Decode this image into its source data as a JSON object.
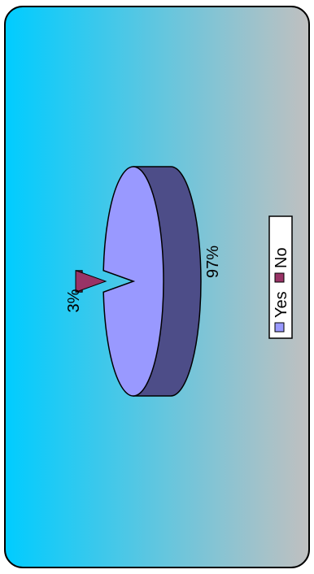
{
  "chart_data": {
    "type": "pie",
    "style": "3d",
    "orientation": "rotated-90-clockwise",
    "categories": [
      "Yes",
      "No"
    ],
    "values": [
      97,
      3
    ],
    "data_labels": [
      "97%",
      "3%"
    ],
    "legend": {
      "placement": "right",
      "entries": [
        {
          "label": "Yes",
          "color": "#9999ff"
        },
        {
          "label": "No",
          "color": "#993366"
        }
      ]
    },
    "title": "",
    "exploded_slice": "No"
  },
  "colors": {
    "background_start": "#00ccff",
    "background_end": "#c0c0c0",
    "yes_top": "#9999ff",
    "yes_side": "#4d4d88",
    "no_top": "#993366",
    "no_side": "#5a1e3c",
    "border": "#000000"
  }
}
